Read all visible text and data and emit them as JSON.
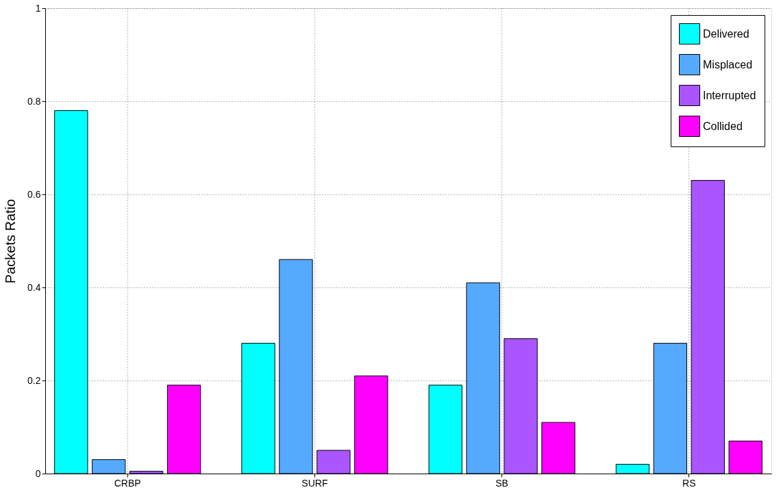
{
  "chart_data": {
    "type": "bar",
    "ylabel": "Packets Ratio",
    "categories": [
      "CRBP",
      "SURF",
      "SB",
      "RS"
    ],
    "series": [
      {
        "name": "Delivered",
        "color": "#00ffff",
        "values": [
          0.78,
          0.28,
          0.19,
          0.02
        ]
      },
      {
        "name": "Misplaced",
        "color": "#55aaff",
        "values": [
          0.03,
          0.46,
          0.41,
          0.28
        ]
      },
      {
        "name": "Interrupted",
        "color": "#aa55ff",
        "values": [
          0.005,
          0.05,
          0.29,
          0.63
        ]
      },
      {
        "name": "Collided",
        "color": "#ff00ff",
        "values": [
          0.19,
          0.21,
          0.11,
          0.07
        ]
      }
    ],
    "ylim": [
      0,
      1
    ],
    "yticks": [
      0,
      0.2,
      0.4,
      0.6,
      0.8,
      1
    ],
    "grid": true,
    "legend": "top right"
  }
}
